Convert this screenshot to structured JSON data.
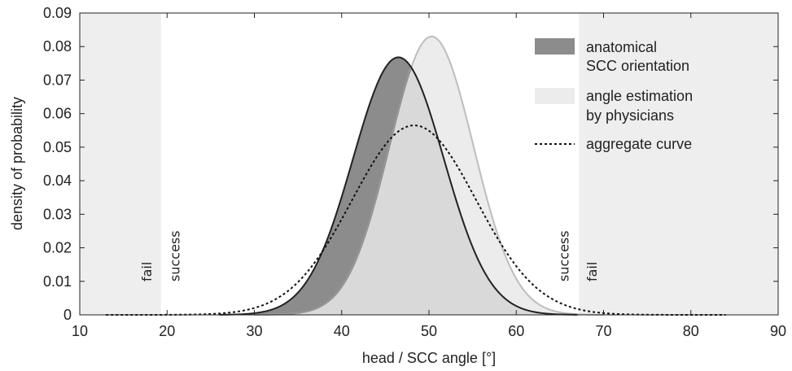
{
  "chart_data": {
    "type": "area",
    "xlabel": "head / SCC angle [°]",
    "ylabel": "density of probability",
    "xlim": [
      10,
      90
    ],
    "ylim": [
      0,
      0.09
    ],
    "x_ticks": [
      "10",
      "20",
      "30",
      "40",
      "50",
      "60",
      "70",
      "80",
      "90"
    ],
    "y_ticks": [
      "0",
      "0.01",
      "0.02",
      "0.03",
      "0.04",
      "0.05",
      "0.06",
      "0.07",
      "0.08",
      "0.09"
    ],
    "grid": false,
    "legend_position": "top-right",
    "regions": [
      {
        "from": 10,
        "to": 19.3,
        "color": "#eeeeee"
      },
      {
        "from": 67.2,
        "to": 90,
        "color": "#eeeeee"
      }
    ],
    "zone_labels": [
      {
        "text": "fail",
        "x": 18.2
      },
      {
        "text": "success",
        "x": 21.4
      },
      {
        "text": "success",
        "x": 66.0
      },
      {
        "text": "fail",
        "x": 69.2
      }
    ],
    "series": [
      {
        "name": "anatomical SCC orientation",
        "style": "filled",
        "fill": "#8c8c8d",
        "stroke": "#222222",
        "mean": 46.5,
        "sd": 5.2,
        "peak": 0.0768,
        "x_range": [
          26,
          67
        ]
      },
      {
        "name": "angle estimation by physicians",
        "style": "filled",
        "fill": "#ececec",
        "stroke": "#bdbdbd",
        "mean": 50.3,
        "sd": 4.8,
        "peak": 0.083,
        "x_range": [
          30,
          70
        ]
      },
      {
        "name": "aggregate curve",
        "style": "dotted",
        "stroke": "#111111",
        "mean": 48.3,
        "sd": 7.1,
        "peak": 0.0565,
        "x_range": [
          13,
          84
        ]
      }
    ],
    "overlap": {
      "fill": "#d9d9d9",
      "stroke": "#8f8f8f"
    },
    "legend": [
      {
        "lines": [
          "anatomical",
          "SCC orientation"
        ],
        "swatch": "dark"
      },
      {
        "lines": [
          "angle estimation",
          "by physicians"
        ],
        "swatch": "light"
      },
      {
        "lines": [
          "aggregate curve"
        ],
        "swatch": "dotted"
      }
    ]
  }
}
